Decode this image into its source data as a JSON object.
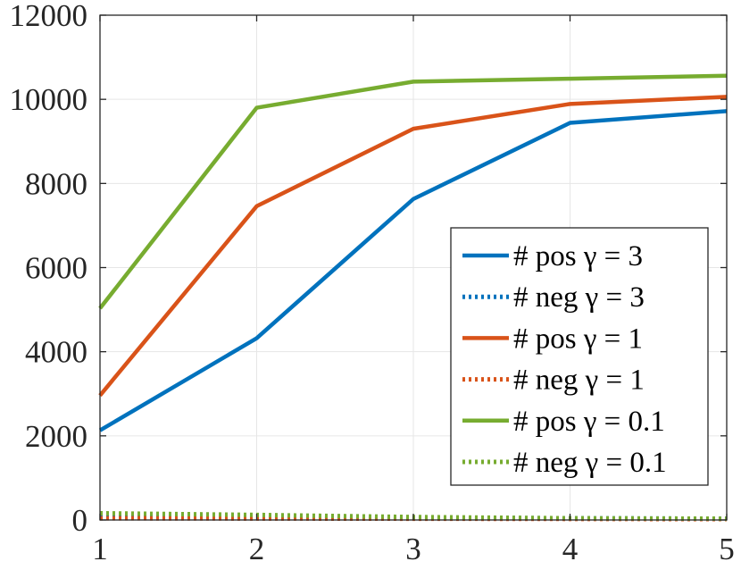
{
  "chart_data": {
    "type": "line",
    "title": "",
    "xlabel": "",
    "ylabel": "",
    "xlim": [
      1,
      5
    ],
    "ylim": [
      0,
      12000
    ],
    "xticks": [
      1,
      2,
      3,
      4,
      5
    ],
    "yticks": [
      0,
      2000,
      4000,
      6000,
      8000,
      10000,
      12000
    ],
    "grid": true,
    "legend_position": "lower-right",
    "x": [
      1,
      2,
      3,
      4,
      5
    ],
    "series": [
      {
        "name": "# pos γ = 3",
        "style": "solid",
        "color": "#0072BD",
        "values": [
          2130,
          4320,
          7630,
          9440,
          9720
        ]
      },
      {
        "name": "# neg γ = 3",
        "style": "dotted",
        "color": "#0072BD",
        "values": [
          120,
          110,
          60,
          40,
          30
        ]
      },
      {
        "name": "# pos γ = 1",
        "style": "solid",
        "color": "#D95319",
        "values": [
          2960,
          7460,
          9300,
          9890,
          10060
        ]
      },
      {
        "name": "# neg γ = 1",
        "style": "dotted",
        "color": "#D95319",
        "values": [
          40,
          35,
          30,
          25,
          20
        ]
      },
      {
        "name": "# pos γ = 0.1",
        "style": "solid",
        "color": "#77AC30",
        "values": [
          5030,
          9800,
          10420,
          10490,
          10560
        ]
      },
      {
        "name": "# neg γ = 0.1",
        "style": "dotted",
        "color": "#77AC30",
        "values": [
          160,
          120,
          70,
          40,
          30
        ]
      }
    ]
  }
}
